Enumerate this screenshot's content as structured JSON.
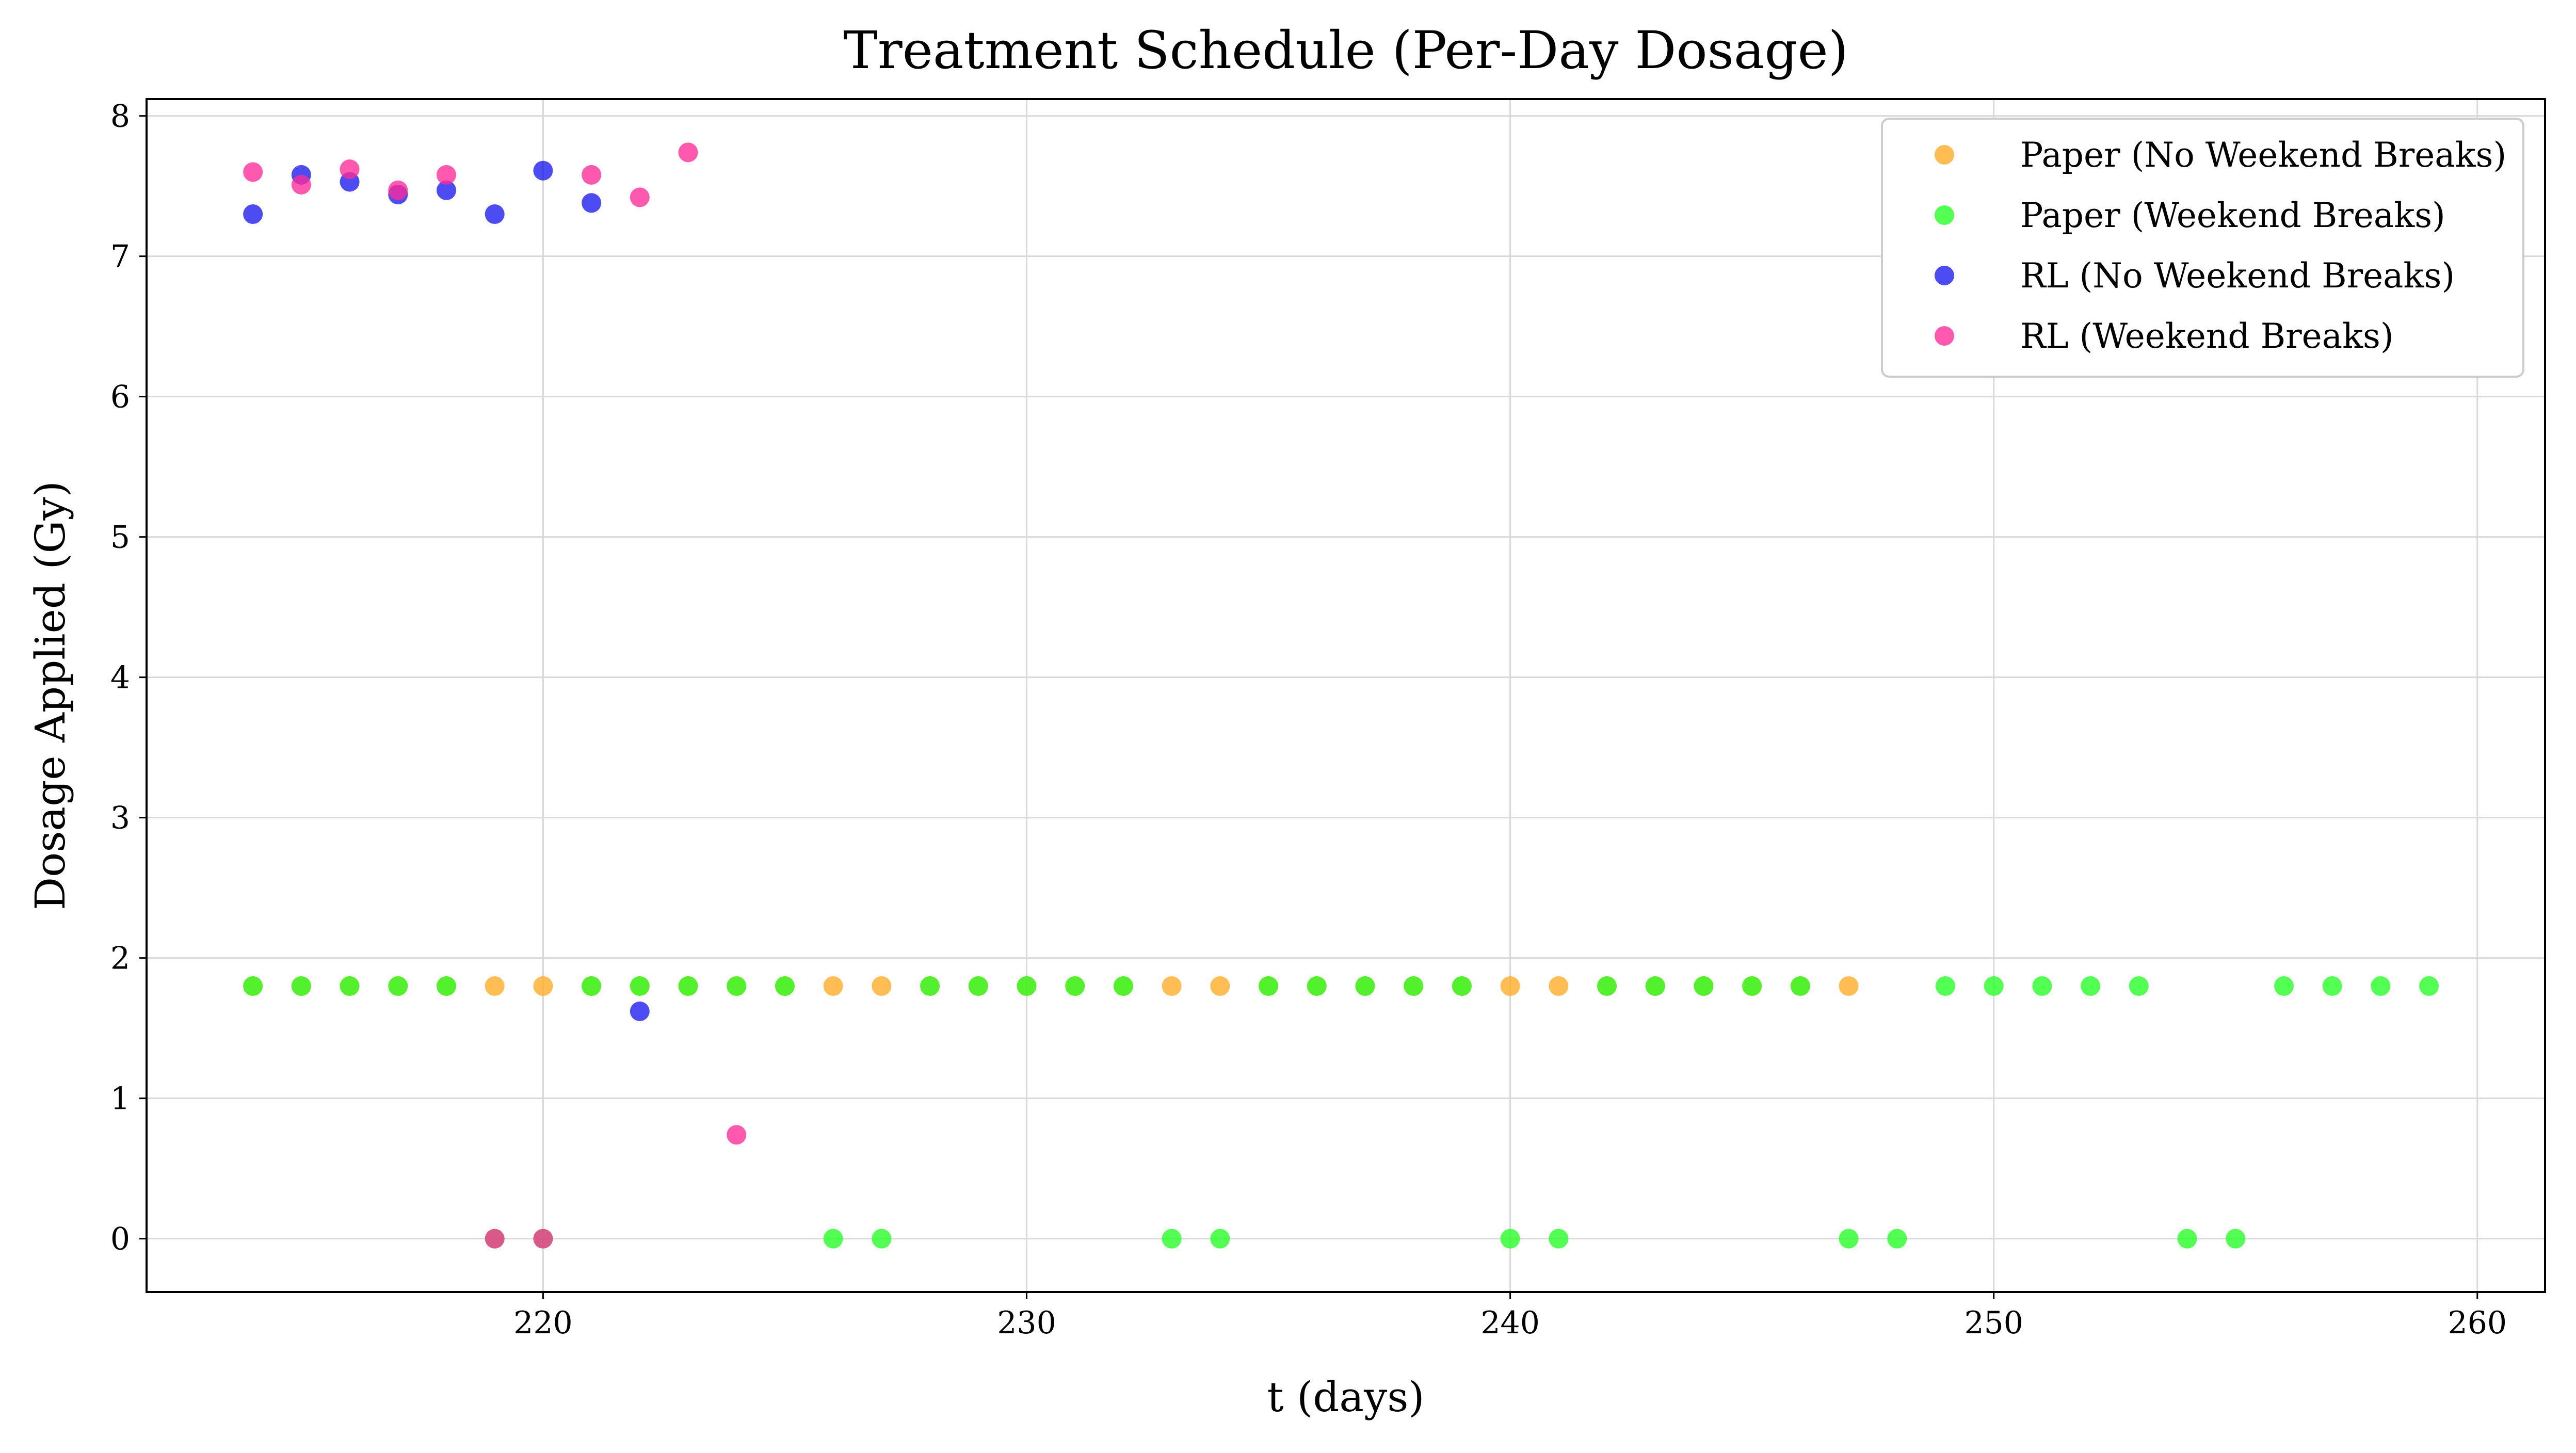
{
  "chart_data": {
    "type": "scatter",
    "title": "Treatment Schedule (Per-Day Dosage)",
    "xlabel": "t (days)",
    "ylabel": "Dosage Applied (Gy)",
    "xlim": [
      211.8,
      261.4
    ],
    "ylim": [
      -0.38,
      8.12
    ],
    "xticks": [
      220,
      230,
      240,
      250,
      260
    ],
    "yticks": [
      0,
      1,
      2,
      3,
      4,
      5,
      6,
      7,
      8
    ],
    "grid": true,
    "legend_position": "top-right",
    "series": [
      {
        "name": "Paper (No Weekend Breaks)",
        "color": "#ffaa22",
        "x": [
          214,
          215,
          216,
          217,
          218,
          219,
          220,
          221,
          222,
          223,
          224,
          225,
          226,
          227,
          228,
          229,
          230,
          231,
          232,
          233,
          234,
          235,
          236,
          237,
          238,
          239,
          240,
          241,
          242,
          243,
          244,
          245,
          246,
          247
        ],
        "y": [
          1.8,
          1.8,
          1.8,
          1.8,
          1.8,
          1.8,
          1.8,
          1.8,
          1.8,
          1.8,
          1.8,
          1.8,
          1.8,
          1.8,
          1.8,
          1.8,
          1.8,
          1.8,
          1.8,
          1.8,
          1.8,
          1.8,
          1.8,
          1.8,
          1.8,
          1.8,
          1.8,
          1.8,
          1.8,
          1.8,
          1.8,
          1.8,
          1.8,
          1.8
        ]
      },
      {
        "name": "Paper (Weekend Breaks)",
        "color": "#22ff22",
        "x": [
          214,
          215,
          216,
          217,
          218,
          219,
          220,
          221,
          222,
          223,
          224,
          225,
          226,
          227,
          228,
          229,
          230,
          231,
          232,
          233,
          234,
          235,
          236,
          237,
          238,
          239,
          240,
          241,
          242,
          243,
          244,
          245,
          246,
          247,
          248,
          249,
          250,
          251,
          252,
          253,
          254,
          255,
          256,
          257,
          258,
          259
        ],
        "y": [
          1.8,
          1.8,
          1.8,
          1.8,
          1.8,
          0,
          0,
          1.8,
          1.8,
          1.8,
          1.8,
          1.8,
          0,
          0,
          1.8,
          1.8,
          1.8,
          1.8,
          1.8,
          0,
          0,
          1.8,
          1.8,
          1.8,
          1.8,
          1.8,
          0,
          0,
          1.8,
          1.8,
          1.8,
          1.8,
          1.8,
          0,
          0,
          1.8,
          1.8,
          1.8,
          1.8,
          1.8,
          0,
          0,
          1.8,
          1.8,
          1.8,
          1.8
        ]
      },
      {
        "name": "RL (No Weekend Breaks)",
        "color": "#1a1aee",
        "x": [
          214,
          215,
          216,
          217,
          218,
          219,
          220,
          221,
          222
        ],
        "y": [
          7.3,
          7.58,
          7.53,
          7.44,
          7.47,
          7.3,
          7.61,
          7.38,
          1.62
        ]
      },
      {
        "name": "RL (Weekend Breaks)",
        "color": "#ff2a99",
        "x": [
          214,
          215,
          216,
          217,
          218,
          219,
          220,
          221,
          222,
          223,
          224
        ],
        "y": [
          7.6,
          7.51,
          7.62,
          7.47,
          7.58,
          0,
          0,
          7.58,
          7.42,
          7.74,
          0.74
        ]
      }
    ]
  }
}
